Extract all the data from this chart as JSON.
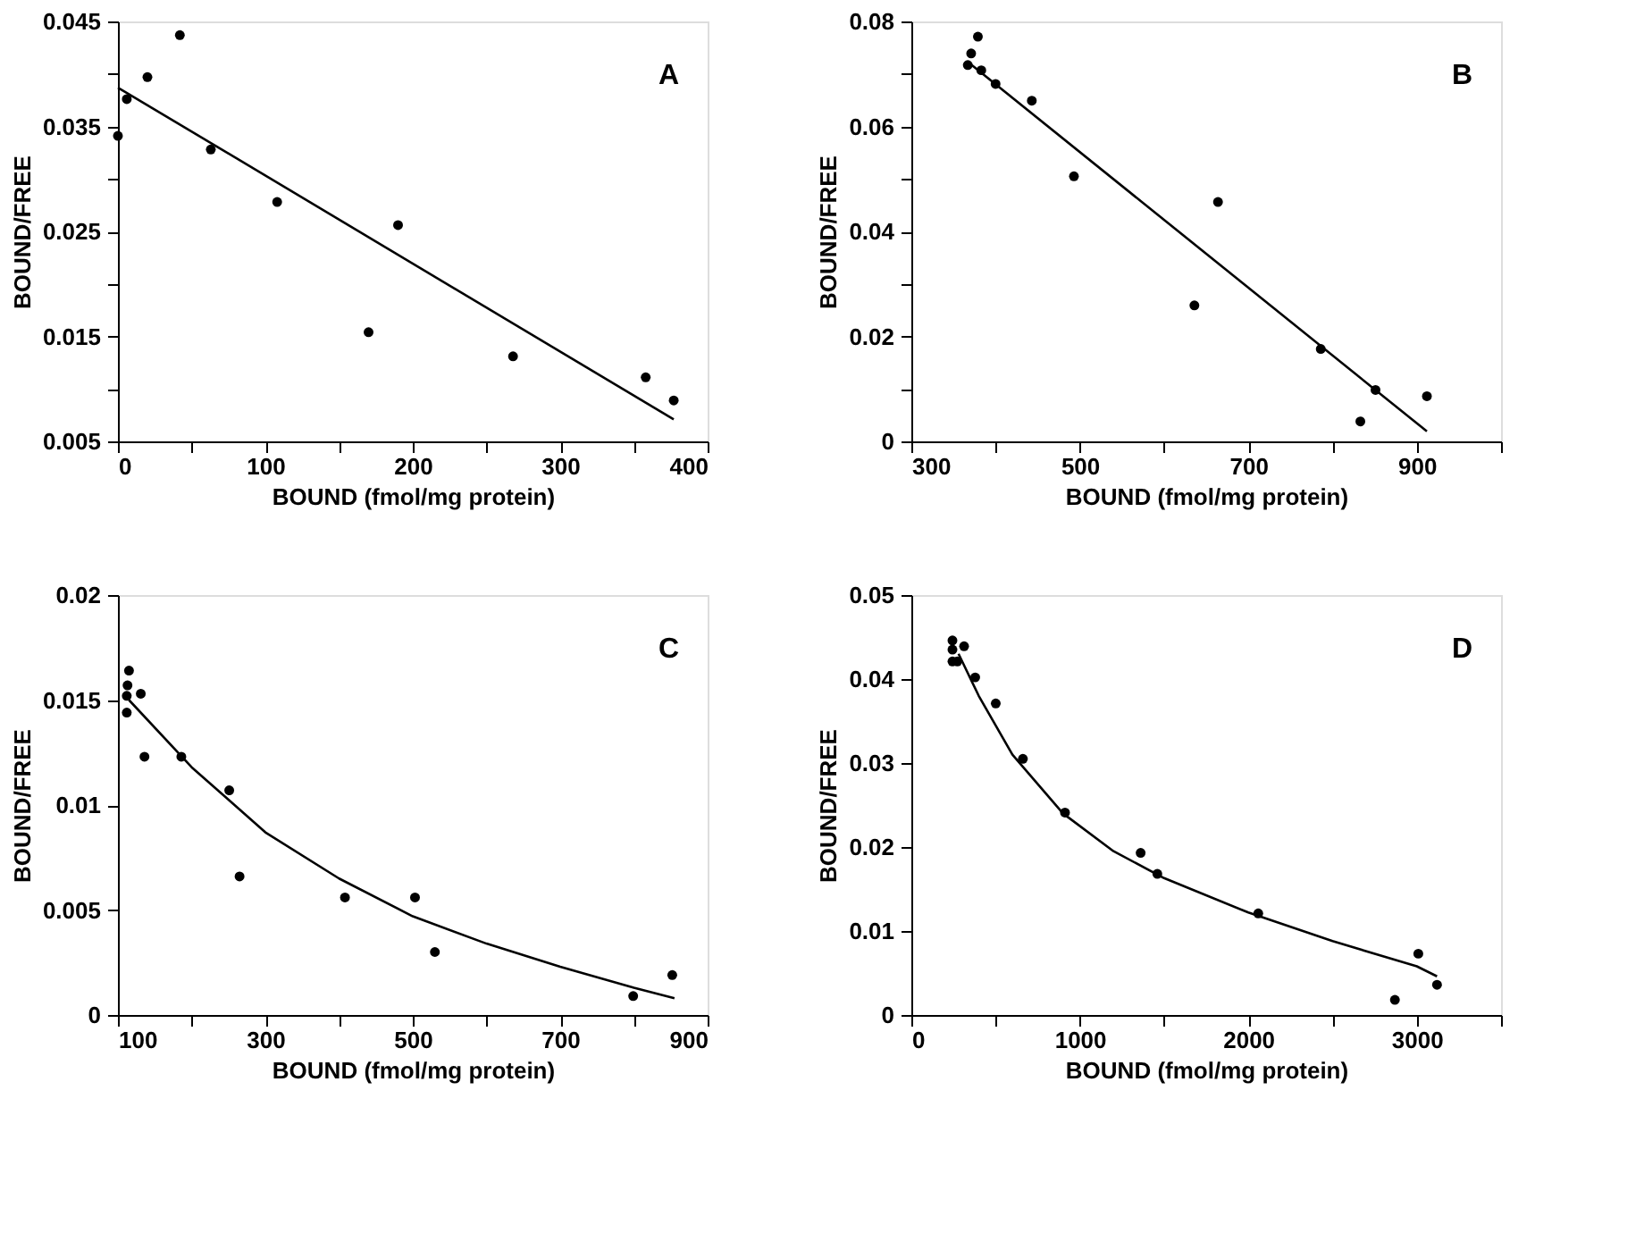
{
  "chart_data": [
    {
      "type": "scatter",
      "xlabel": "BOUND (fmol/mg protein)",
      "ylabel": "BOUND/FREE",
      "annotations": [
        "A"
      ],
      "grid": false,
      "xlim": [
        0,
        400
      ],
      "xticks": [
        0,
        {
          "value": 50,
          "label": null
        },
        100,
        {
          "value": 150,
          "label": null
        },
        200,
        {
          "value": 250,
          "label": null
        },
        300,
        {
          "value": 350,
          "label": null
        },
        400
      ],
      "ylim": [
        0.005,
        0.045
      ],
      "yticks": [
        0.005,
        {
          "value": 0.01,
          "label": null
        },
        0.015,
        {
          "value": 0.02,
          "label": null
        },
        0.025,
        {
          "value": 0.03,
          "label": null
        },
        0.035,
        {
          "value": 0.04,
          "label": null
        },
        0.045
      ],
      "series": [
        {
          "marker": "circle",
          "color": "#000000",
          "x": [
            0,
            6,
            20,
            42,
            63,
            108,
            170,
            190,
            268,
            358,
            377
          ],
          "values": [
            0.0341,
            0.0376,
            0.0397,
            0.0437,
            0.0328,
            0.0278,
            0.0154,
            0.0256,
            0.0131,
            0.0111,
            0.0089
          ]
        },
        {
          "type": "line",
          "marker": "none",
          "line_style": "solid",
          "color": "#000000",
          "x": [
            0,
            377
          ],
          "values": [
            0.0387,
            0.0071
          ]
        }
      ]
    },
    {
      "type": "scatter",
      "xlabel": "BOUND (fmol/mg protein)",
      "ylabel": "BOUND/FREE",
      "annotations": [
        "B"
      ],
      "grid": false,
      "xlim": [
        300,
        1000
      ],
      "xticks": [
        300,
        {
          "value": 400,
          "label": null
        },
        500,
        {
          "value": 600,
          "label": null
        },
        700,
        {
          "value": 800,
          "label": null
        },
        900,
        {
          "value": 1000,
          "label": null
        }
      ],
      "ylim": [
        0,
        0.08
      ],
      "yticks": [
        0,
        {
          "value": 0.01,
          "label": null
        },
        0.02,
        {
          "value": 0.03,
          "label": null
        },
        0.04,
        {
          "value": 0.05,
          "label": null
        },
        0.06,
        {
          "value": 0.07,
          "label": null
        },
        0.08
      ],
      "series": [
        {
          "marker": "circle",
          "color": "#000000",
          "x": [
            367,
            371,
            379,
            383,
            400,
            443,
            493,
            636,
            664,
            786,
            833,
            851,
            912
          ],
          "values": [
            0.0717,
            0.0739,
            0.0771,
            0.0707,
            0.0681,
            0.0649,
            0.0505,
            0.0259,
            0.0456,
            0.0176,
            0.0038,
            0.0098,
            0.0086
          ]
        },
        {
          "type": "line",
          "marker": "none",
          "line_style": "solid",
          "color": "#000000",
          "x": [
            367,
            912
          ],
          "values": [
            0.0723,
            0.0019
          ]
        }
      ]
    },
    {
      "type": "scatter",
      "xlabel": "BOUND (fmol/mg protein)",
      "ylabel": "BOUND/FREE",
      "annotations": [
        "C"
      ],
      "grid": false,
      "xlim": [
        100,
        900
      ],
      "xticks": [
        100,
        {
          "value": 200,
          "label": null
        },
        300,
        {
          "value": 400,
          "label": null
        },
        500,
        {
          "value": 600,
          "label": null
        },
        700,
        {
          "value": 800,
          "label": null
        },
        900
      ],
      "ylim": [
        0,
        0.02
      ],
      "yticks": [
        0,
        0.005,
        0.01,
        0.015,
        0.02
      ],
      "series": [
        {
          "marker": "circle",
          "color": "#000000",
          "x": [
            112,
            112,
            113,
            115,
            131,
            136,
            186,
            251,
            265,
            408,
            503,
            530,
            799,
            852
          ],
          "values": [
            0.0144,
            0.0152,
            0.0157,
            0.0164,
            0.0153,
            0.0123,
            0.0123,
            0.0107,
            0.0066,
            0.0056,
            0.0056,
            0.003,
            0.0009,
            0.0019
          ]
        },
        {
          "type": "line",
          "marker": "none",
          "line_style": "solid",
          "color": "#000000",
          "x": [
            115,
            200,
            300,
            400,
            500,
            600,
            700,
            800,
            855
          ],
          "values": [
            0.015,
            0.0118,
            0.0087,
            0.0065,
            0.0047,
            0.0034,
            0.0023,
            0.0013,
            0.0008
          ]
        }
      ]
    },
    {
      "type": "scatter",
      "xlabel": "BOUND (fmol/mg protein)",
      "ylabel": "BOUND/FREE",
      "annotations": [
        "D"
      ],
      "grid": false,
      "xlim": [
        0,
        3500
      ],
      "xticks": [
        0,
        {
          "value": 500,
          "label": null
        },
        1000,
        {
          "value": 1500,
          "label": null
        },
        2000,
        {
          "value": 2500,
          "label": null
        },
        3000,
        {
          "value": 3500,
          "label": null
        }
      ],
      "ylim": [
        0,
        0.05
      ],
      "yticks": [
        0,
        0.01,
        0.02,
        0.03,
        0.04,
        0.05
      ],
      "series": [
        {
          "marker": "circle",
          "color": "#000000",
          "x": [
            244,
            244,
            244,
            273,
            313,
            379,
            501,
            662,
            912,
            1361,
            1460,
            2059,
            2870,
            3009,
            3120
          ],
          "values": [
            0.0446,
            0.0435,
            0.0421,
            0.0421,
            0.0439,
            0.0402,
            0.0371,
            0.0305,
            0.0241,
            0.0193,
            0.0168,
            0.0121,
            0.0018,
            0.0073,
            0.0036
          ]
        },
        {
          "type": "line",
          "marker": "none",
          "line_style": "solid",
          "color": "#000000",
          "x": [
            280,
            400,
            600,
            900,
            1200,
            1500,
            2000,
            2500,
            3000,
            3120
          ],
          "values": [
            0.043,
            0.038,
            0.031,
            0.024,
            0.0195,
            0.0163,
            0.0122,
            0.0088,
            0.0058,
            0.0046
          ]
        }
      ]
    }
  ]
}
